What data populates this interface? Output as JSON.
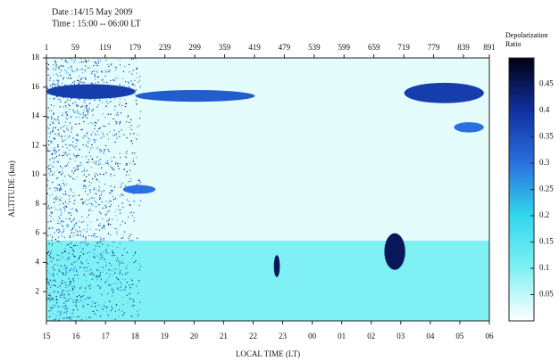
{
  "chart_data": {
    "type": "heatmap",
    "title": "Date :14/15 May 2009",
    "subtitle": "Time : 15:00 -- 06:00 LT",
    "xlabel": "LOCAL TIME  (LT)",
    "ylabel": "ALTITUDE  (km)",
    "colorbar_label": "Depolarization Ratio",
    "xlim": [
      1,
      891
    ],
    "xticks": [
      1,
      59,
      119,
      179,
      239,
      299,
      359,
      419,
      479,
      539,
      599,
      659,
      719,
      779,
      839,
      891
    ],
    "x2lim": [
      15,
      30
    ],
    "x2ticks": [
      15,
      16,
      17,
      18,
      19,
      20,
      21,
      22,
      23,
      {
        "value": 24,
        "label": "00"
      },
      {
        "value": 25,
        "label": "01"
      },
      {
        "value": 26,
        "label": "02"
      },
      {
        "value": 27,
        "label": "03"
      },
      {
        "value": 28,
        "label": "04"
      },
      {
        "value": 29,
        "label": "05"
      },
      {
        "value": 30,
        "label": "06"
      }
    ],
    "ylim": [
      0,
      18
    ],
    "yticks": [
      2,
      4,
      6,
      8,
      10,
      12,
      14,
      16,
      18
    ],
    "clim": [
      0,
      0.5
    ],
    "cticks": [
      0.05,
      0.1,
      0.15,
      0.2,
      0.25,
      0.3,
      0.35,
      0.4,
      0.45
    ],
    "colormap": [
      "#ffffff",
      "#7ff0f4",
      "#30d8ec",
      "#2a70e0",
      "#1030a0",
      "#000010"
    ],
    "regions": [
      {
        "x": [
          1,
          891
        ],
        "y": [
          0,
          5.5
        ],
        "value": 0.1
      },
      {
        "x": [
          1,
          891
        ],
        "y": [
          5.5,
          18
        ],
        "value": 0.02
      },
      {
        "x": [
          1,
          190
        ],
        "y": [
          0,
          18
        ],
        "value": 0.4
      },
      {
        "x": [
          1,
          180
        ],
        "y": [
          15.2,
          16.2
        ],
        "value": 0.38
      },
      {
        "x": [
          180,
          420
        ],
        "y": [
          15.0,
          15.8
        ],
        "value": 0.33
      },
      {
        "x": [
          720,
          880
        ],
        "y": [
          14.9,
          16.3
        ],
        "value": 0.38
      },
      {
        "x": [
          820,
          880
        ],
        "y": [
          12.9,
          13.6
        ],
        "value": 0.3
      },
      {
        "x": [
          155,
          220
        ],
        "y": [
          8.7,
          9.3
        ],
        "value": 0.3
      },
      {
        "x": [
          458,
          470
        ],
        "y": [
          3.0,
          4.5
        ],
        "value": 0.45
      },
      {
        "x": [
          680,
          722
        ],
        "y": [
          3.5,
          6.0
        ],
        "value": 0.45
      }
    ]
  }
}
